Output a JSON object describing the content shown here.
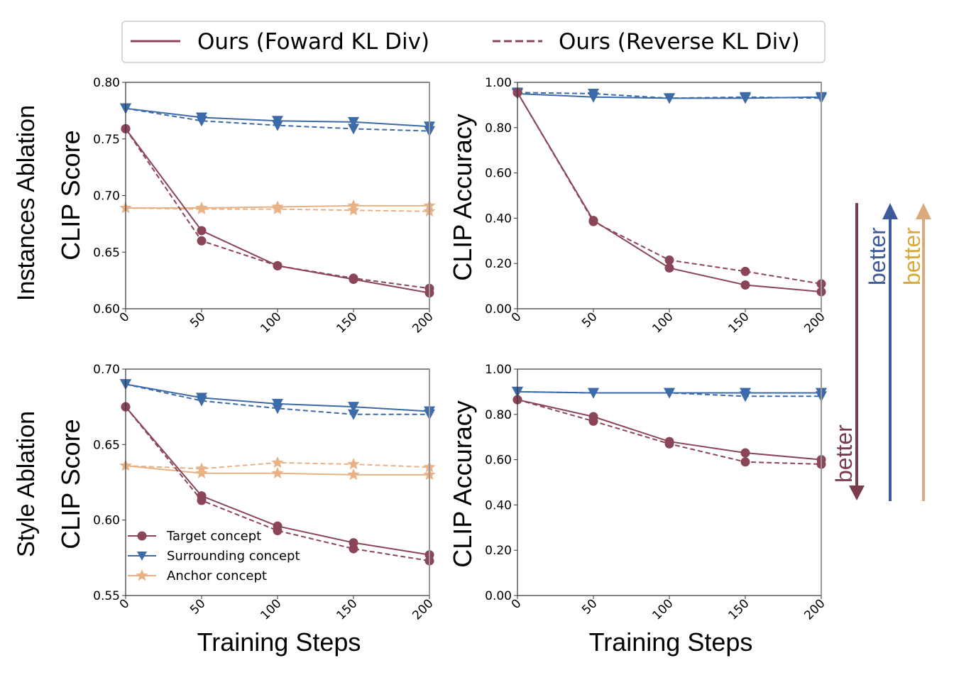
{
  "figure": {
    "top_legend": {
      "items": [
        {
          "label": "Ours (Foward KL Div)",
          "style": "solid"
        },
        {
          "label": "Ours (Reverse KL Div)",
          "style": "dashed"
        }
      ]
    },
    "row_labels": [
      "Instances Ablation",
      "Style Ablation"
    ],
    "inner_legend": {
      "items": [
        {
          "label": "Target concept",
          "marker": "circle",
          "series": "target"
        },
        {
          "label": "Surrounding concept",
          "marker": "triangle-down",
          "series": "surrounding"
        },
        {
          "label": "Anchor concept",
          "marker": "star",
          "series": "anchor"
        }
      ]
    },
    "better_arrows": [
      {
        "label": "better",
        "direction": "down",
        "series": "target"
      },
      {
        "label": "better",
        "direction": "up",
        "series": "surrounding"
      },
      {
        "label": "better",
        "direction": "up",
        "series": "anchor"
      }
    ],
    "colors": {
      "target": "#8b4558",
      "surrounding": "#3d6aa8",
      "anchor": "#e9b285",
      "target_arrow": "#7a3d4d",
      "surrounding_arrow": "#3f5a9a",
      "anchor_arrow": "#d9aa7c",
      "anchor_better_text": "#d9a93a",
      "axis": "#333333"
    }
  },
  "chart_data": [
    {
      "type": "line",
      "id": "instances-clip-score",
      "title": "",
      "row": "Instances Ablation",
      "xlabel": "",
      "ylabel": "CLIP Score",
      "x": [
        0,
        50,
        100,
        150,
        200
      ],
      "xticks": [
        "0",
        "50",
        "100",
        "150",
        "200"
      ],
      "xlim": [
        0,
        200
      ],
      "ylim": [
        0.6,
        0.8
      ],
      "yticks": [
        "0.60",
        "0.65",
        "0.70",
        "0.75",
        "0.80"
      ],
      "ytick_values": [
        0.6,
        0.65,
        0.7,
        0.75,
        0.8
      ],
      "grid": false,
      "series": [
        {
          "name": "Surrounding concept (Forward KL)",
          "group": "surrounding",
          "style": "solid",
          "values": [
            0.777,
            0.769,
            0.766,
            0.765,
            0.761
          ]
        },
        {
          "name": "Surrounding concept (Reverse KL)",
          "group": "surrounding",
          "style": "dashed",
          "values": [
            0.777,
            0.766,
            0.762,
            0.759,
            0.757
          ]
        },
        {
          "name": "Anchor concept (Forward KL)",
          "group": "anchor",
          "style": "solid",
          "values": [
            0.689,
            0.689,
            0.69,
            0.691,
            0.691
          ]
        },
        {
          "name": "Anchor concept (Reverse KL)",
          "group": "anchor",
          "style": "dashed",
          "values": [
            0.689,
            0.688,
            0.688,
            0.687,
            0.686
          ]
        },
        {
          "name": "Target concept (Forward KL)",
          "group": "target",
          "style": "solid",
          "values": [
            0.759,
            0.669,
            0.638,
            0.626,
            0.614
          ]
        },
        {
          "name": "Target concept (Reverse KL)",
          "group": "target",
          "style": "dashed",
          "values": [
            0.759,
            0.66,
            0.638,
            0.627,
            0.618
          ]
        }
      ]
    },
    {
      "type": "line",
      "id": "instances-clip-accuracy",
      "title": "",
      "row": "Instances Ablation",
      "xlabel": "",
      "ylabel": "CLIP Accuracy",
      "x": [
        0,
        50,
        100,
        150,
        200
      ],
      "xticks": [
        "0",
        "50",
        "100",
        "150",
        "200"
      ],
      "xlim": [
        0,
        200
      ],
      "ylim": [
        0.0,
        1.0
      ],
      "yticks": [
        "0.00",
        "0.20",
        "0.40",
        "0.60",
        "0.80",
        "1.00"
      ],
      "ytick_values": [
        0.0,
        0.2,
        0.4,
        0.6,
        0.8,
        1.0
      ],
      "grid": false,
      "series": [
        {
          "name": "Surrounding concept (Forward KL)",
          "group": "surrounding",
          "style": "solid",
          "values": [
            0.95,
            0.935,
            0.93,
            0.93,
            0.935
          ]
        },
        {
          "name": "Surrounding concept (Reverse KL)",
          "group": "surrounding",
          "style": "dashed",
          "values": [
            0.955,
            0.95,
            0.93,
            0.935,
            0.93
          ]
        },
        {
          "name": "Target concept (Forward KL)",
          "group": "target",
          "style": "solid",
          "values": [
            0.955,
            0.39,
            0.18,
            0.105,
            0.075
          ]
        },
        {
          "name": "Target concept (Reverse KL)",
          "group": "target",
          "style": "dashed",
          "values": [
            0.955,
            0.385,
            0.215,
            0.165,
            0.11
          ]
        }
      ]
    },
    {
      "type": "line",
      "id": "style-clip-score",
      "title": "",
      "row": "Style Ablation",
      "xlabel": "Training Steps",
      "ylabel": "CLIP Score",
      "x": [
        0,
        50,
        100,
        150,
        200
      ],
      "xticks": [
        "0",
        "50",
        "100",
        "150",
        "200"
      ],
      "xlim": [
        0,
        200
      ],
      "ylim": [
        0.55,
        0.7
      ],
      "yticks": [
        "0.55",
        "0.60",
        "0.65",
        "0.70"
      ],
      "ytick_values": [
        0.55,
        0.6,
        0.65,
        0.7
      ],
      "grid": false,
      "legend": "lower-left",
      "series": [
        {
          "name": "Surrounding concept (Forward KL)",
          "group": "surrounding",
          "style": "solid",
          "values": [
            0.69,
            0.681,
            0.677,
            0.675,
            0.672
          ]
        },
        {
          "name": "Surrounding concept (Reverse KL)",
          "group": "surrounding",
          "style": "dashed",
          "values": [
            0.69,
            0.679,
            0.674,
            0.67,
            0.67
          ]
        },
        {
          "name": "Anchor concept (Forward KL)",
          "group": "anchor",
          "style": "solid",
          "values": [
            0.636,
            0.631,
            0.631,
            0.63,
            0.63
          ]
        },
        {
          "name": "Anchor concept (Reverse KL)",
          "group": "anchor",
          "style": "dashed",
          "values": [
            0.636,
            0.634,
            0.638,
            0.637,
            0.635
          ]
        },
        {
          "name": "Target concept (Forward KL)",
          "group": "target",
          "style": "solid",
          "values": [
            0.675,
            0.616,
            0.596,
            0.585,
            0.577
          ]
        },
        {
          "name": "Target concept (Reverse KL)",
          "group": "target",
          "style": "dashed",
          "values": [
            0.675,
            0.613,
            0.593,
            0.581,
            0.573
          ]
        }
      ]
    },
    {
      "type": "line",
      "id": "style-clip-accuracy",
      "title": "",
      "row": "Style Ablation",
      "xlabel": "Training Steps",
      "ylabel": "CLIP Accuracy",
      "x": [
        0,
        50,
        100,
        150,
        200
      ],
      "xticks": [
        "0",
        "50",
        "100",
        "150",
        "200"
      ],
      "xlim": [
        0,
        200
      ],
      "ylim": [
        0.0,
        1.0
      ],
      "yticks": [
        "0.00",
        "0.20",
        "0.40",
        "0.60",
        "0.80",
        "1.00"
      ],
      "ytick_values": [
        0.0,
        0.2,
        0.4,
        0.6,
        0.8,
        1.0
      ],
      "grid": false,
      "series": [
        {
          "name": "Surrounding concept (Forward KL)",
          "group": "surrounding",
          "style": "solid",
          "values": [
            0.9,
            0.895,
            0.895,
            0.895,
            0.895
          ]
        },
        {
          "name": "Surrounding concept (Reverse KL)",
          "group": "surrounding",
          "style": "dashed",
          "values": [
            0.9,
            0.895,
            0.895,
            0.88,
            0.88
          ]
        },
        {
          "name": "Target concept (Forward KL)",
          "group": "target",
          "style": "solid",
          "values": [
            0.865,
            0.79,
            0.68,
            0.63,
            0.6
          ]
        },
        {
          "name": "Target concept (Reverse KL)",
          "group": "target",
          "style": "dashed",
          "values": [
            0.865,
            0.77,
            0.67,
            0.59,
            0.58
          ]
        }
      ]
    }
  ]
}
